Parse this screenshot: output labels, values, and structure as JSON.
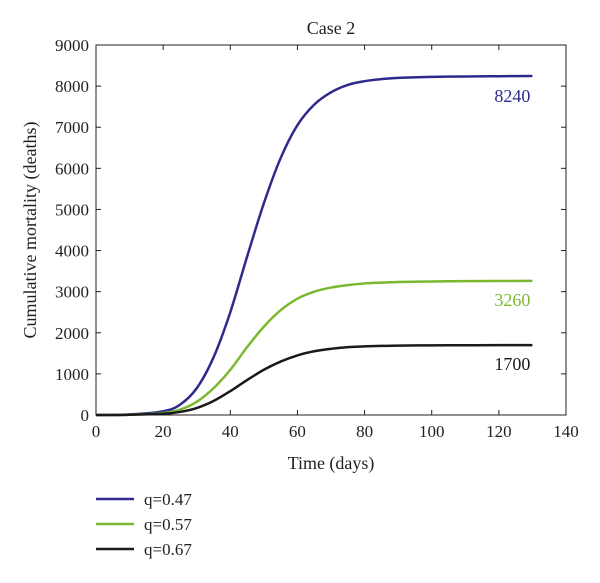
{
  "chart_data": {
    "type": "line",
    "title": "Case 2",
    "xlabel": "Time (days)",
    "ylabel": "Cumulative mortality (deaths)",
    "xlim": [
      0,
      140
    ],
    "ylim": [
      0,
      9000
    ],
    "xticks": [
      0,
      20,
      40,
      60,
      80,
      100,
      120,
      140
    ],
    "yticks": [
      0,
      1000,
      2000,
      3000,
      4000,
      5000,
      6000,
      7000,
      8000,
      9000
    ],
    "grid": false,
    "legend_position": "bottom-left",
    "series": [
      {
        "name": "q=0.47",
        "color": "#2e2a8c",
        "end_label": "8240",
        "x": [
          0,
          10,
          20,
          25,
          30,
          35,
          40,
          45,
          50,
          55,
          60,
          65,
          70,
          75,
          80,
          85,
          90,
          100,
          110,
          120,
          130
        ],
        "y": [
          0,
          15,
          90,
          250,
          650,
          1400,
          2500,
          3850,
          5150,
          6250,
          7050,
          7550,
          7850,
          8030,
          8120,
          8170,
          8200,
          8225,
          8235,
          8240,
          8245
        ]
      },
      {
        "name": "q=0.57",
        "color": "#7cb82f",
        "end_label": "3260",
        "x": [
          0,
          10,
          20,
          25,
          30,
          35,
          40,
          45,
          50,
          55,
          60,
          65,
          70,
          75,
          80,
          85,
          90,
          100,
          110,
          120,
          130
        ],
        "y": [
          0,
          8,
          50,
          130,
          320,
          650,
          1100,
          1650,
          2150,
          2550,
          2830,
          3000,
          3100,
          3160,
          3200,
          3220,
          3235,
          3248,
          3255,
          3260,
          3262
        ]
      },
      {
        "name": "q=0.67",
        "color": "#1a1a1a",
        "end_label": "1700",
        "x": [
          0,
          10,
          20,
          25,
          30,
          35,
          40,
          45,
          50,
          55,
          60,
          65,
          70,
          75,
          80,
          85,
          90,
          100,
          110,
          120,
          130
        ],
        "y": [
          0,
          5,
          30,
          75,
          170,
          340,
          580,
          850,
          1100,
          1300,
          1450,
          1550,
          1610,
          1650,
          1670,
          1680,
          1688,
          1694,
          1697,
          1700,
          1701
        ]
      }
    ]
  }
}
